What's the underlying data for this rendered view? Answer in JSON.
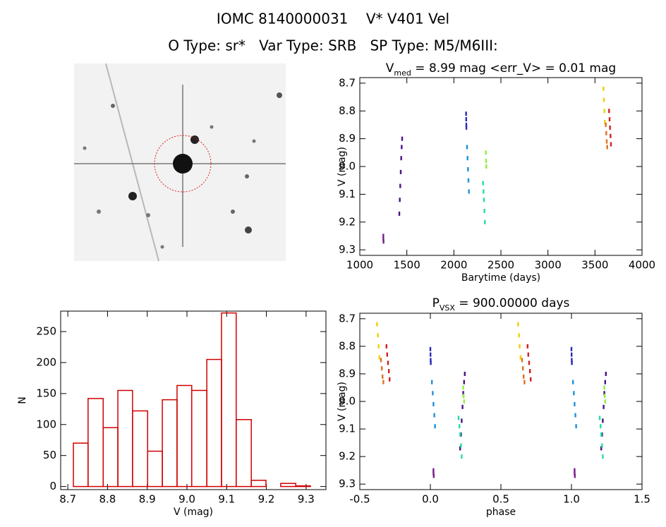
{
  "title": "IOMC 8140000031    V* V401 Vel",
  "subtitle": "O Type: sr*   Var Type: SRB   SP Type: M5/M6III:",
  "chart_data": [
    {
      "type": "scatter",
      "title": [
        "V",
        "med",
        " = 8.99 mag <err_V> = 0.01 mag"
      ],
      "x_label": "Barytime (days)",
      "y_label": "V (mag)",
      "xlim": [
        1000,
        4000
      ],
      "xticks": [
        1000,
        1500,
        2000,
        2500,
        3000,
        3500,
        4000
      ],
      "ylim": [
        9.32,
        8.68
      ],
      "yticks": [
        8.7,
        8.8,
        8.9,
        {
          "value": 9,
          "label": "9.0"
        },
        9.1,
        9.2,
        9.3
      ],
      "series": [
        {
          "color": "#7a1f8c",
          "x": [
            1250,
            1250,
            1252
          ],
          "values": [
            9.25,
            9.26,
            9.27
          ]
        },
        {
          "color": "#4a0f8a",
          "x": [
            1420,
            1425,
            1430,
            1435,
            1440,
            1445,
            1450
          ],
          "values": [
            9.17,
            9.12,
            9.07,
            9.02,
            8.97,
            8.93,
            8.9
          ]
        },
        {
          "color": "#2a2ab8",
          "x": [
            2130,
            2131,
            2132,
            2133
          ],
          "values": [
            8.81,
            8.83,
            8.85,
            8.86
          ]
        },
        {
          "color": "#1e90d8",
          "x": [
            2140,
            2145,
            2150,
            2155,
            2160
          ],
          "values": [
            8.93,
            8.97,
            9.01,
            9.05,
            9.09
          ]
        },
        {
          "color": "#20e0a0",
          "x": [
            2310,
            2315,
            2320,
            2325,
            2330
          ],
          "values": [
            9.06,
            9.09,
            9.12,
            9.16,
            9.2
          ]
        },
        {
          "color": "#90f040",
          "x": [
            2340,
            2342,
            2345
          ],
          "values": [
            8.95,
            8.98,
            9.0
          ]
        },
        {
          "color": "#f0d000",
          "x": [
            3590,
            3595,
            3600,
            3605
          ],
          "values": [
            8.72,
            8.76,
            8.8,
            8.84
          ]
        },
        {
          "color": "#e07020",
          "x": [
            3615,
            3620,
            3625,
            3630
          ],
          "values": [
            8.85,
            8.88,
            8.91,
            8.93
          ]
        },
        {
          "color": "#d02020",
          "x": [
            3650,
            3655,
            3660,
            3665,
            3670
          ],
          "values": [
            8.8,
            8.83,
            8.86,
            8.89,
            8.92
          ]
        }
      ]
    },
    {
      "type": "histogram",
      "x_label": "V (mag)",
      "y_label": "N",
      "xlim": [
        8.682,
        9.35
      ],
      "xticks": [
        8.7,
        8.8,
        8.9,
        {
          "value": 9,
          "label": "9.0"
        },
        9.1,
        9.2,
        9.3
      ],
      "ylim": [
        -5,
        283
      ],
      "yticks": [
        0,
        50,
        100,
        150,
        200,
        250
      ],
      "color": "#d00000",
      "bins": [
        8.714,
        8.751,
        8.789,
        8.826,
        8.863,
        8.901,
        8.938,
        8.975,
        9.012,
        9.05,
        9.087,
        9.124,
        9.162,
        9.199,
        9.236,
        9.274,
        9.311
      ],
      "counts": [
        70,
        142,
        95,
        155,
        122,
        57,
        140,
        163,
        155,
        205,
        280,
        108,
        10,
        0,
        5,
        1
      ]
    },
    {
      "type": "scatter",
      "title": [
        "P",
        "VSX",
        " = 900.00000 days"
      ],
      "x_label": "phase",
      "y_label": "V (mag)",
      "xlim": [
        -0.5,
        1.5
      ],
      "xticks": [
        -0.5,
        {
          "value": 0,
          "label": "0.0"
        },
        0.5,
        {
          "value": 1,
          "label": "1.0"
        },
        1.5
      ],
      "ylim": [
        9.32,
        8.68
      ],
      "yticks": [
        8.7,
        8.8,
        8.9,
        {
          "value": 9,
          "label": "9.0"
        },
        9.1,
        9.2,
        9.3
      ],
      "series": [
        {
          "color": "#7a1f8c",
          "x": [
            0.022,
            0.022,
            0.024,
            1.022,
            1.022,
            1.024
          ],
          "values": [
            9.25,
            9.26,
            9.27,
            9.25,
            9.26,
            9.27
          ]
        },
        {
          "color": "#4a0f8a",
          "x": [
            0.211,
            0.217,
            0.222,
            0.228,
            0.233,
            0.239,
            0.244,
            1.211,
            1.217,
            1.222,
            1.228,
            1.233,
            1.239,
            1.244
          ],
          "values": [
            9.17,
            9.12,
            9.07,
            9.02,
            8.97,
            8.93,
            8.9,
            9.17,
            9.12,
            9.07,
            9.02,
            8.97,
            8.93,
            8.9
          ]
        },
        {
          "color": "#2a2ab8",
          "x": [
            0,
            0.001,
            0.002,
            0.003,
            1,
            1.001,
            1.002,
            1.003
          ],
          "values": [
            8.81,
            8.83,
            8.85,
            8.86,
            8.81,
            8.83,
            8.85,
            8.86
          ]
        },
        {
          "color": "#1e90d8",
          "x": [
            0.011,
            0.017,
            0.022,
            0.028,
            0.033,
            1.011,
            1.017,
            1.022,
            1.028,
            1.033
          ],
          "values": [
            8.93,
            8.97,
            9.01,
            9.05,
            9.09,
            8.93,
            8.97,
            9.01,
            9.05,
            9.09
          ]
        },
        {
          "color": "#20e0a0",
          "x": [
            0.2,
            0.206,
            0.211,
            0.217,
            0.222,
            1.2,
            1.206,
            1.211,
            1.217,
            1.222
          ],
          "values": [
            9.06,
            9.09,
            9.12,
            9.16,
            9.2,
            9.06,
            9.09,
            9.12,
            9.16,
            9.2
          ]
        },
        {
          "color": "#90f040",
          "x": [
            0.233,
            0.236,
            0.239,
            1.233,
            1.236,
            1.239
          ],
          "values": [
            8.95,
            8.98,
            9.0,
            8.95,
            8.98,
            9.0
          ]
        },
        {
          "color": "#f0d000",
          "x": [
            0.622,
            0.628,
            0.633,
            0.639,
            -0.378,
            -0.372,
            -0.367,
            -0.361
          ],
          "values": [
            8.72,
            8.76,
            8.8,
            8.84,
            8.72,
            8.76,
            8.8,
            8.84
          ]
        },
        {
          "color": "#e07020",
          "x": [
            0.65,
            0.656,
            0.661,
            0.667,
            -0.35,
            -0.344,
            -0.339,
            -0.333
          ],
          "values": [
            8.85,
            8.88,
            8.91,
            8.93,
            8.85,
            8.88,
            8.91,
            8.93
          ]
        },
        {
          "color": "#d02020",
          "x": [
            0.689,
            0.694,
            0.7,
            0.706,
            0.711,
            -0.311,
            -0.306,
            -0.3,
            -0.294,
            -0.289
          ],
          "values": [
            8.8,
            8.83,
            8.86,
            8.89,
            8.92,
            8.8,
            8.83,
            8.86,
            8.89,
            8.92
          ]
        }
      ]
    }
  ]
}
